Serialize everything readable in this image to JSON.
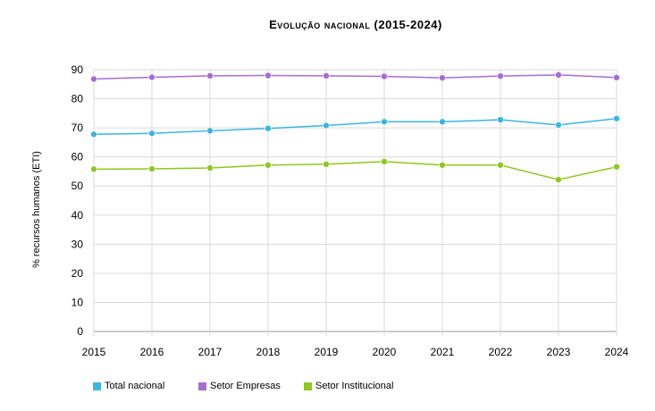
{
  "chart_data": {
    "type": "line",
    "title": "Evolução nacional (2015-2024)",
    "xlabel": "",
    "ylabel": "% recursos humanos (ETI)",
    "x": [
      "2015",
      "2016",
      "2017",
      "2018",
      "2019",
      "2020",
      "2021",
      "2022",
      "2023",
      "2024"
    ],
    "ylim": [
      0,
      90
    ],
    "yticks": [
      "0",
      "10",
      "20",
      "30",
      "40",
      "50",
      "60",
      "70",
      "80",
      "90"
    ],
    "grid": true,
    "legend_position": "bottom",
    "series": [
      {
        "name": "Total nacional",
        "color": "#3cb5e0",
        "values": [
          67.8,
          68.1,
          69.0,
          69.8,
          70.8,
          72.1,
          72.1,
          72.8,
          71.0,
          73.2
        ]
      },
      {
        "name": "Setor Empresas",
        "color": "#a56dd4",
        "values": [
          86.8,
          87.4,
          87.9,
          88.0,
          87.9,
          87.7,
          87.2,
          87.8,
          88.2,
          87.3
        ]
      },
      {
        "name": "Setor Institucional",
        "color": "#8ec71f",
        "values": [
          55.8,
          55.9,
          56.2,
          57.2,
          57.5,
          58.4,
          57.2,
          57.2,
          52.2,
          56.6
        ]
      }
    ]
  }
}
